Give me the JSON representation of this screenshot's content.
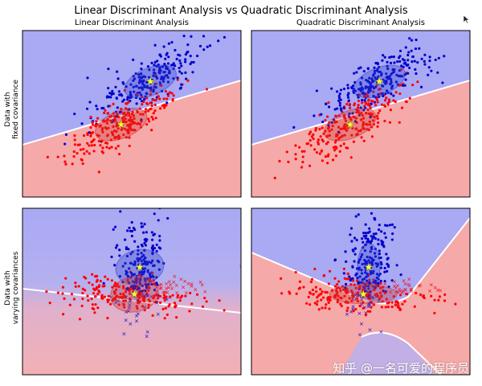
{
  "figure": {
    "suptitle": "Linear Discriminant Analysis vs Quadratic Discriminant Analysis",
    "col_titles": [
      "Linear Discriminant Analysis",
      "Quadratic Discriminant Analysis"
    ],
    "row_labels": [
      [
        "Data with",
        "fixed covariance"
      ],
      [
        "Data with",
        "varying covariances"
      ]
    ],
    "watermark": "知乎 @一名可爱的程序员",
    "colors": {
      "class0": "#ff0000",
      "class1": "#0000cc",
      "region_blue": "#a8a8f5",
      "region_red": "#f5a8a8",
      "mean_marker": "#ffff33",
      "boundary": "#ffffff"
    }
  },
  "chart_data": [
    {
      "type": "scatter",
      "title": "Linear Discriminant Analysis",
      "ylabel": "Data with fixed covariance",
      "series": [
        {
          "class": 0,
          "color": "#ff0000",
          "marker": "dot",
          "mean": [
            -0.3,
            -0.3
          ]
        },
        {
          "class": 1,
          "color": "#0000cc",
          "marker": "dot",
          "mean": [
            0.8,
            1.3
          ]
        }
      ],
      "decision_boundary": "linear",
      "grid": false
    },
    {
      "type": "scatter",
      "title": "Quadratic Discriminant Analysis",
      "series": [
        {
          "class": 0,
          "color": "#ff0000",
          "marker": "dot",
          "mean": [
            -0.3,
            -0.3
          ]
        },
        {
          "class": 1,
          "color": "#0000cc",
          "marker": "dot",
          "mean": [
            0.8,
            1.3
          ]
        }
      ],
      "decision_boundary": "linear",
      "grid": false
    },
    {
      "type": "scatter",
      "ylabel": "Data with varying covariances",
      "series": [
        {
          "class": 0,
          "color": "#ff0000",
          "marker": "dot",
          "mean": [
            0.2,
            0.0
          ]
        },
        {
          "class": 1,
          "color": "#0000cc",
          "marker": "dot",
          "mean": [
            0.4,
            1.0
          ]
        }
      ],
      "misclassified_marker": "x",
      "decision_boundary": "linear",
      "grid": false
    },
    {
      "type": "scatter",
      "series": [
        {
          "class": 0,
          "color": "#ff0000",
          "marker": "dot",
          "mean": [
            0.2,
            0.0
          ]
        },
        {
          "class": 1,
          "color": "#0000cc",
          "marker": "dot",
          "mean": [
            0.4,
            1.0
          ]
        }
      ],
      "decision_boundary": "quadratic",
      "grid": false
    }
  ]
}
